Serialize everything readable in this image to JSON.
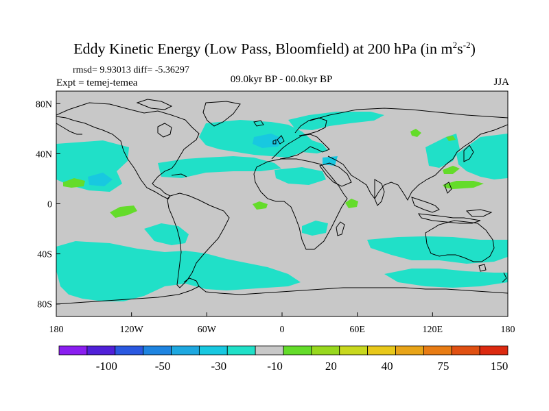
{
  "title": {
    "main": "Eddy Kinetic Energy (Low Pass, Bloomfield) at 200 hPa (in m",
    "sup1": "2",
    "mid": "s",
    "sup2": "-2",
    "end": ")"
  },
  "stats": "rmsd= 9.93013 diff= -5.36297",
  "expt": "Expt = temej-temea",
  "period": "09.0kyr BP - 00.0kyr BP",
  "season": "JJA",
  "axes": {
    "x_ticks": [
      {
        "lon": -180,
        "label": "180"
      },
      {
        "lon": -120,
        "label": "120W"
      },
      {
        "lon": -60,
        "label": "60W"
      },
      {
        "lon": 0,
        "label": "0"
      },
      {
        "lon": 60,
        "label": "60E"
      },
      {
        "lon": 120,
        "label": "120E"
      },
      {
        "lon": 180,
        "label": "180"
      }
    ],
    "y_ticks": [
      {
        "lat": 80,
        "label": "80N"
      },
      {
        "lat": 40,
        "label": "40N"
      },
      {
        "lat": 0,
        "label": "0"
      },
      {
        "lat": -40,
        "label": "40S"
      },
      {
        "lat": -80,
        "label": "80S"
      }
    ]
  },
  "colorbar": {
    "colors": [
      "#8a1ef0",
      "#5020d8",
      "#2a58e0",
      "#1e84e0",
      "#1ea8e0",
      "#18c8e0",
      "#20e0c8",
      "#c8c8c8",
      "#64dc2a",
      "#98d81e",
      "#c8d81e",
      "#e8c81a",
      "#e8a418",
      "#e87c14",
      "#e05012",
      "#dc2a10"
    ],
    "labels": [
      {
        "after": 2,
        "text": "-100"
      },
      {
        "after": 4,
        "text": "-50"
      },
      {
        "after": 6,
        "text": "-30"
      },
      {
        "after": 8,
        "text": "-10"
      },
      {
        "after": 10,
        "text": "20"
      },
      {
        "after": 12,
        "text": "40"
      },
      {
        "after": 14,
        "text": "75"
      },
      {
        "after": 16,
        "text": "150"
      }
    ]
  },
  "map_colors": {
    "background": "#c8c8c8",
    "negative_light": "#20e0c8",
    "negative_mid": "#18c8e0",
    "positive_green": "#64dc2a",
    "coast": "#000000"
  }
}
